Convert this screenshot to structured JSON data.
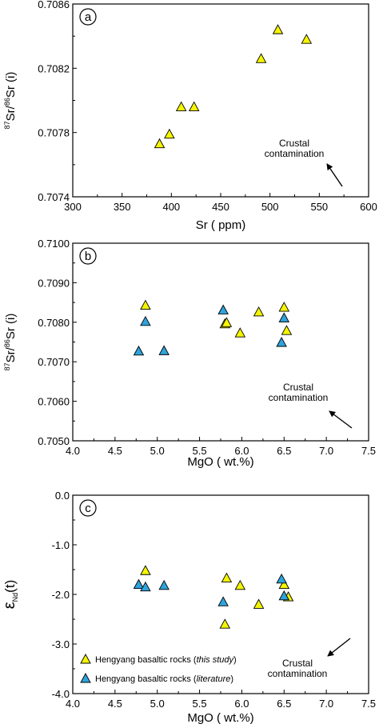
{
  "colors": {
    "this_study": "#f5f500",
    "literature": "#2ea3dc",
    "outline": "#000000"
  },
  "legend": {
    "this_study": {
      "prefix": "Hengyang basaltic rocks (",
      "italic": "this study",
      "suffix": ")"
    },
    "literature": {
      "prefix": "Hengyang basaltic rocks (",
      "italic": "literature",
      "suffix": ")"
    }
  },
  "chart_data": [
    {
      "type": "scatter",
      "panel_label": "a",
      "xlabel": "Sr ( ppm)",
      "ylabel": {
        "sup1": "87",
        "t1": "Sr/",
        "sup2": "86",
        "t2": "Sr (i)"
      },
      "xlim": [
        300,
        600
      ],
      "ylim": [
        0.7074,
        0.7086
      ],
      "xticks": [
        "300",
        "350",
        "400",
        "450",
        "500",
        "550",
        "600"
      ],
      "yticks": [
        "0.7074",
        "0.7078",
        "0.7082",
        "0.7086"
      ],
      "annotation": {
        "lines": [
          "Crustal",
          "contamination"
        ]
      },
      "series": [
        {
          "key": "this_study",
          "marker": "triangle",
          "points": [
            [
              388,
              0.70773
            ],
            [
              398,
              0.70779
            ],
            [
              410,
              0.70796
            ],
            [
              423,
              0.70796
            ],
            [
              491,
              0.70826
            ],
            [
              508,
              0.70844
            ],
            [
              537,
              0.70838
            ]
          ]
        }
      ]
    },
    {
      "type": "scatter",
      "panel_label": "b",
      "xlabel": "MgO ( wt.%)",
      "ylabel": {
        "sup1": "87",
        "t1": "Sr/",
        "sup2": "86",
        "t2": "Sr (i)"
      },
      "xlim": [
        4.0,
        7.5
      ],
      "ylim": [
        0.705,
        0.71
      ],
      "xticks": [
        "4.0",
        "4.5",
        "5.0",
        "5.5",
        "6.0",
        "6.5",
        "7.0",
        "7.5"
      ],
      "yticks": [
        "0.7050",
        "0.7060",
        "0.7070",
        "0.7080",
        "0.7090",
        "0.7100"
      ],
      "annotation": {
        "lines": [
          "Crustal",
          "contamination"
        ]
      },
      "series": [
        {
          "key": "this_study",
          "marker": "triangle",
          "points": [
            [
              4.86,
              0.70843
            ],
            [
              5.8,
              0.70796
            ],
            [
              5.82,
              0.70799
            ],
            [
              5.98,
              0.70773
            ],
            [
              6.2,
              0.70826
            ],
            [
              6.5,
              0.70838
            ],
            [
              6.53,
              0.70779
            ]
          ]
        },
        {
          "key": "literature",
          "marker": "triangle",
          "points": [
            [
              4.78,
              0.70727
            ],
            [
              4.86,
              0.70802
            ],
            [
              5.08,
              0.70728
            ],
            [
              5.78,
              0.70831
            ],
            [
              6.47,
              0.70749
            ],
            [
              6.5,
              0.70811
            ]
          ]
        }
      ]
    },
    {
      "type": "scatter",
      "panel_label": "c",
      "xlabel": "MgO ( wt.%)",
      "ylabel": {
        "t1": "ε",
        "sub": "Nd",
        "t2": "(t)"
      },
      "xlim": [
        4.0,
        7.5
      ],
      "ylim": [
        -4.0,
        0.0
      ],
      "xticks": [
        "4.0",
        "4.5",
        "5.0",
        "5.5",
        "6.0",
        "6.5",
        "7.0",
        "7.5"
      ],
      "yticks": [
        "-4.0",
        "-3.0",
        "-2.0",
        "-1.0",
        "0.0"
      ],
      "annotation": {
        "lines": [
          "Crustal",
          "contamination"
        ]
      },
      "series": [
        {
          "key": "this_study",
          "marker": "triangle",
          "points": [
            [
              4.86,
              -1.52
            ],
            [
              5.8,
              -2.6
            ],
            [
              5.82,
              -1.67
            ],
            [
              5.98,
              -1.82
            ],
            [
              6.2,
              -2.2
            ],
            [
              6.5,
              -1.8
            ],
            [
              6.55,
              -2.05
            ]
          ]
        },
        {
          "key": "literature",
          "marker": "triangle",
          "points": [
            [
              4.78,
              -1.8
            ],
            [
              4.86,
              -1.85
            ],
            [
              5.08,
              -1.82
            ],
            [
              5.78,
              -2.15
            ],
            [
              6.47,
              -1.69
            ],
            [
              6.5,
              -2.03
            ]
          ]
        }
      ]
    }
  ]
}
